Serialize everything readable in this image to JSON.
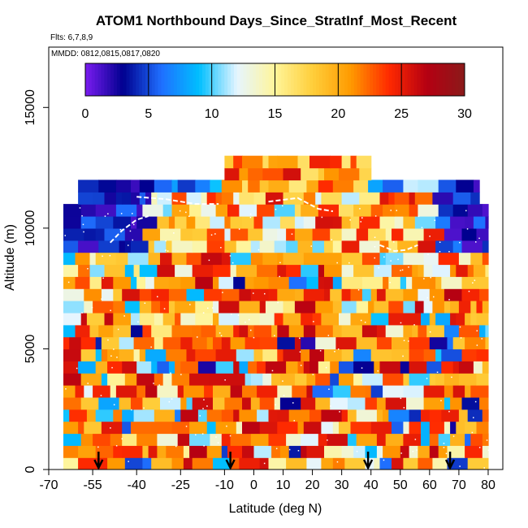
{
  "chart_data": {
    "type": "heatmap",
    "title": "ATOM1 Northbound Days_Since_StratInf_Most_Recent",
    "subtitle_flights": "Flts: 6,7,8,9",
    "subtitle_dates": "MMDD: 0812,0815,0817,0820",
    "xlabel": "Latitude (deg N)",
    "ylabel": "Altitude (m)",
    "xlim": [
      -70,
      85
    ],
    "ylim": [
      0,
      17500
    ],
    "x_ticks": [
      -70,
      -55,
      -40,
      -25,
      -10,
      0,
      10,
      20,
      30,
      40,
      50,
      60,
      70,
      80
    ],
    "x_tick_labels": [
      "-70",
      "-55",
      "-40",
      "-25",
      "-10",
      "0",
      "10",
      "20",
      "30",
      "40",
      "50",
      "60",
      "70",
      "80"
    ],
    "y_ticks": [
      0,
      5000,
      10000,
      15000
    ],
    "y_tick_labels": [
      "0",
      "5000",
      "10000",
      "15000"
    ],
    "colorbar": {
      "min": 0,
      "max": 30,
      "ticks": [
        0,
        5,
        10,
        15,
        20,
        25,
        30
      ],
      "tick_labels": [
        "0",
        "5",
        "10",
        "15",
        "20",
        "25",
        "30"
      ],
      "colors": [
        "#7a1cf0",
        "#00008f",
        "#1f6fff",
        "#00bfff",
        "#e6f5ff",
        "#fff59a",
        "#ffce3a",
        "#ff9a00",
        "#ff2a00",
        "#b50012",
        "#8b1a1a"
      ]
    },
    "flight_arrows_lat": [
      -53,
      -8,
      39,
      67
    ],
    "data_extent": {
      "lat_min": -65,
      "lat_max": 80,
      "alt_max_m": 13000
    },
    "structure": [
      {
        "alt_range_m": [
          0,
          8000
        ],
        "description": "mixed, mostly 15-25 days with blue patches"
      },
      {
        "alt_range_m": [
          9500,
          11500
        ],
        "lat_range": [
          -65,
          -35
        ],
        "value": 3
      },
      {
        "alt_range_m": [
          9500,
          11500
        ],
        "lat_range": [
          65,
          80
        ],
        "value": 3
      },
      {
        "alt_range_m": [
          11500,
          13000
        ],
        "lat_range": [
          -10,
          40
        ],
        "value": 20
      }
    ]
  }
}
